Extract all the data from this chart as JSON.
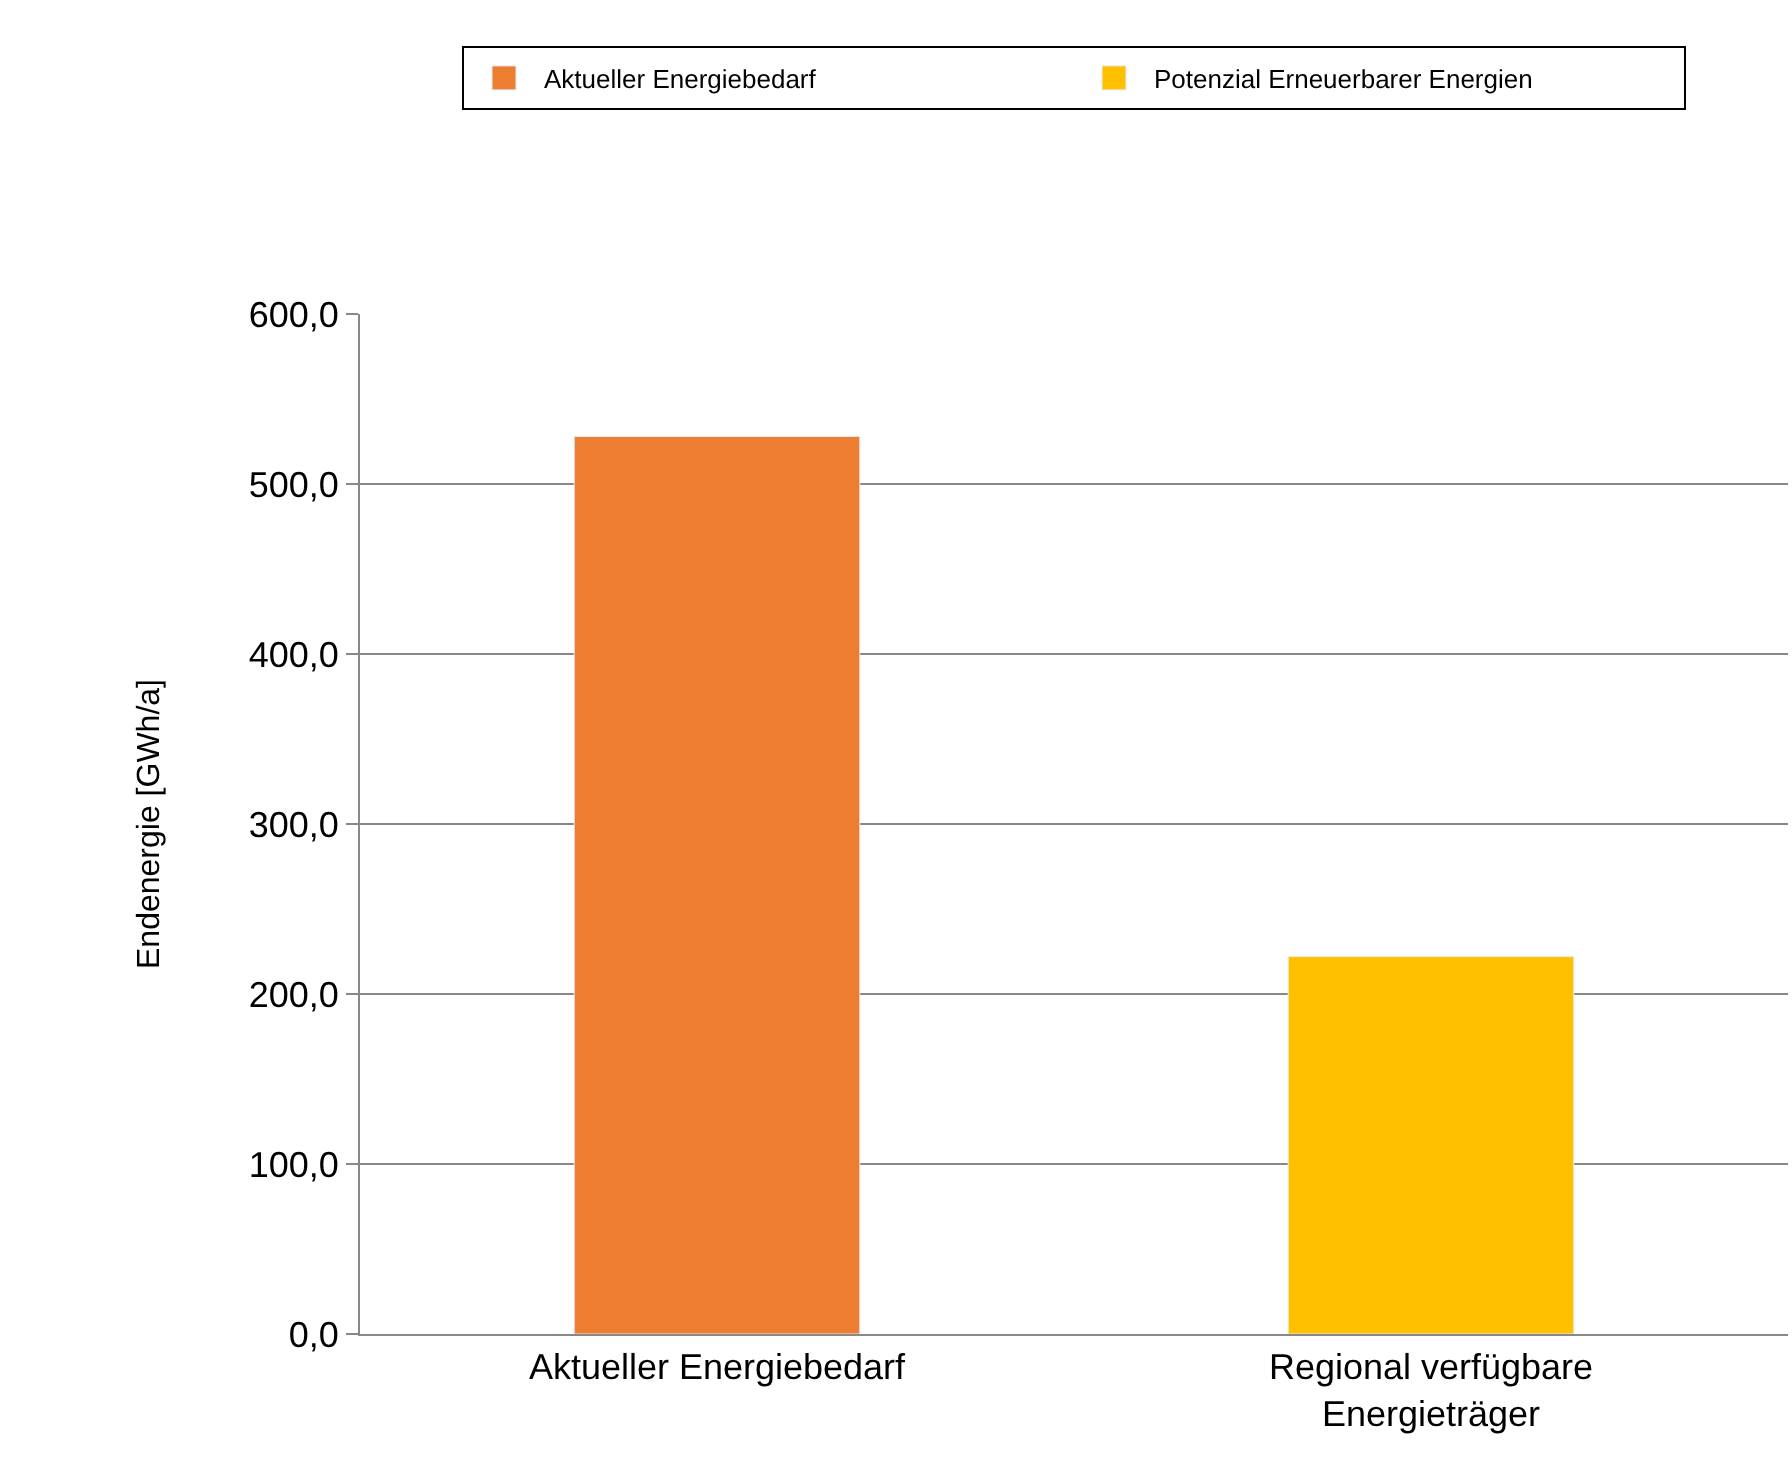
{
  "chart_data": {
    "type": "bar",
    "ylabel": "Endenergie [GWh/a]",
    "categories": [
      "Aktueller Energiebedarf",
      "Regional verfügbare Energieträger"
    ],
    "series": [
      {
        "name": "Aktueller Energiebedarf",
        "color": "#ed7d31",
        "values": [
          528,
          null
        ]
      },
      {
        "name": "Potenzial Erneuerbarer Energien",
        "color": "#ffc000",
        "values": [
          null,
          222
        ]
      }
    ],
    "ylim": [
      0,
      600
    ],
    "yticks": [
      {
        "value": 0,
        "label": "0,0"
      },
      {
        "value": 100,
        "label": "100,0"
      },
      {
        "value": 200,
        "label": "200,0"
      },
      {
        "value": 300,
        "label": "300,0"
      },
      {
        "value": 400,
        "label": "400,0"
      },
      {
        "value": 500,
        "label": "500,0"
      },
      {
        "value": 600,
        "label": "600,0"
      }
    ],
    "grid": "y",
    "legend": "top"
  }
}
